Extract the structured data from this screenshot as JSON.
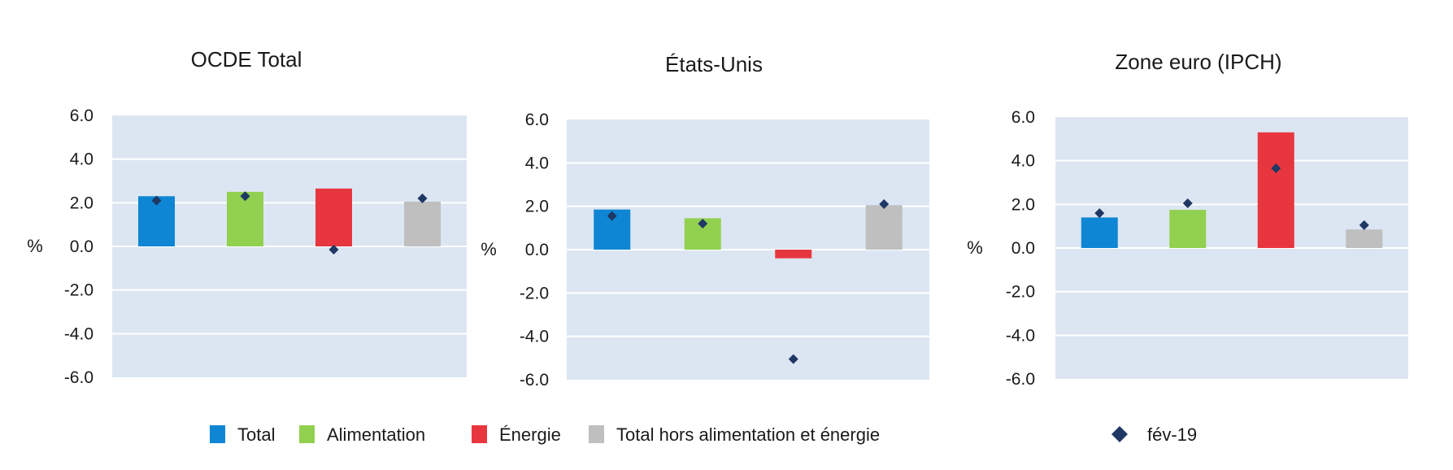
{
  "chart_data": [
    {
      "type": "bar",
      "title": "OCDE Total",
      "ylabel": "%",
      "ylim": [
        -6,
        6
      ],
      "yticks": [
        "6.0",
        "4.0",
        "2.0",
        "0.0",
        "-2.0",
        "-4.0",
        "-6.0"
      ],
      "categories": [
        "Total",
        "Alimentation",
        "Énergie",
        "Total hors alimentation et énergie"
      ],
      "series": [
        {
          "name": "",
          "kind": "bar",
          "values": [
            2.3,
            2.5,
            2.65,
            2.05
          ]
        },
        {
          "name": "fév-19",
          "kind": "marker",
          "values": [
            2.1,
            2.3,
            -0.15,
            2.2
          ]
        }
      ]
    },
    {
      "type": "bar",
      "title": "États-Unis",
      "ylabel": "%",
      "ylim": [
        -6,
        6
      ],
      "yticks": [
        "6.0",
        "4.0",
        "2.0",
        "0.0",
        "-2.0",
        "-4.0",
        "-6.0"
      ],
      "categories": [
        "Total",
        "Alimentation",
        "Énergie",
        "Total hors alimentation et énergie"
      ],
      "series": [
        {
          "name": "",
          "kind": "bar",
          "values": [
            1.85,
            1.45,
            -0.4,
            2.05
          ]
        },
        {
          "name": "fév-19",
          "kind": "marker",
          "values": [
            1.55,
            1.2,
            -5.05,
            2.1
          ]
        }
      ]
    },
    {
      "type": "bar",
      "title": "Zone euro (IPCH)",
      "ylabel": "%",
      "ylim": [
        -6,
        6
      ],
      "yticks": [
        "6.0",
        "4.0",
        "2.0",
        "0.0",
        "-2.0",
        "-4.0",
        "-6.0"
      ],
      "categories": [
        "Total",
        "Alimentation",
        "Énergie",
        "Total hors alimentation et énergie"
      ],
      "series": [
        {
          "name": "",
          "kind": "bar",
          "values": [
            1.4,
            1.75,
            5.3,
            0.85
          ]
        },
        {
          "name": "fév-19",
          "kind": "marker",
          "values": [
            1.6,
            2.05,
            3.65,
            1.05
          ]
        }
      ]
    }
  ],
  "legend": {
    "items": [
      {
        "label": "Total",
        "color": "#0e86d4"
      },
      {
        "label": "Alimentation",
        "color": "#92d050"
      },
      {
        "label": "Énergie",
        "color": "#e8363f"
      },
      {
        "label": "Total hors alimentation et énergie",
        "color": "#bfbfbf"
      }
    ],
    "marker_label": "fév-19",
    "marker_color": "#1f3864"
  },
  "colors": {
    "plot_background": "#dce6f2",
    "gridline": "#ffffff"
  }
}
